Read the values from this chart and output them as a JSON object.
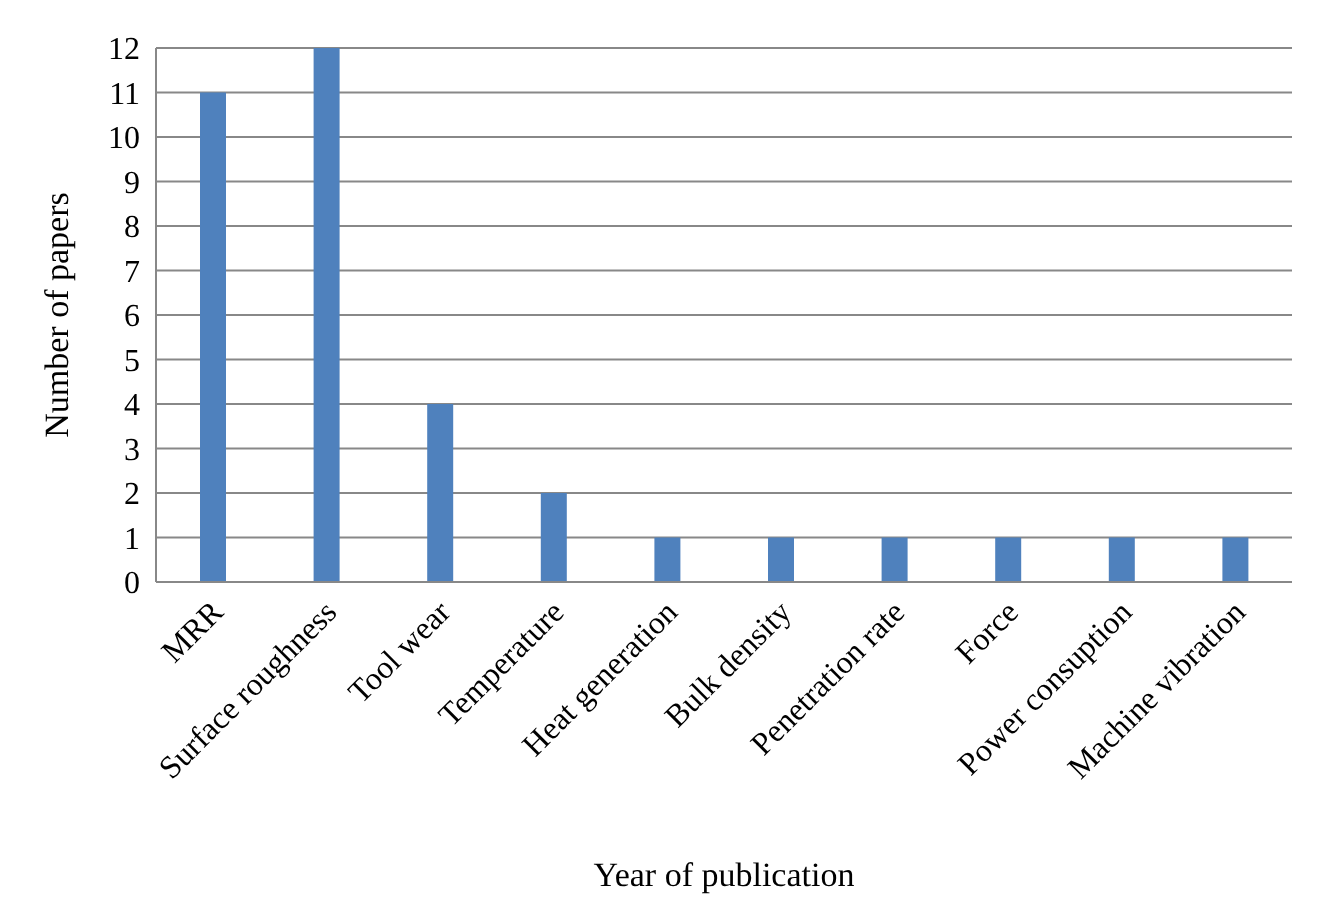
{
  "chart_data": {
    "type": "bar",
    "xlabel": "Year of publication",
    "ylabel": "Number of papers",
    "categories": [
      "MRR",
      "Surface roughness",
      "Tool wear",
      "Temperature",
      "Heat generation",
      "Bulk density",
      "Penetration rate",
      "Force",
      "Power consuption",
      "Machine vibration"
    ],
    "values": [
      11,
      12,
      4,
      2,
      1,
      1,
      1,
      1,
      1,
      1
    ],
    "color": "#4f81bd",
    "ylim": [
      0,
      12
    ],
    "yticks": [
      0,
      1,
      2,
      3,
      4,
      5,
      6,
      7,
      8,
      9,
      10,
      11,
      12
    ],
    "grid": "y"
  }
}
